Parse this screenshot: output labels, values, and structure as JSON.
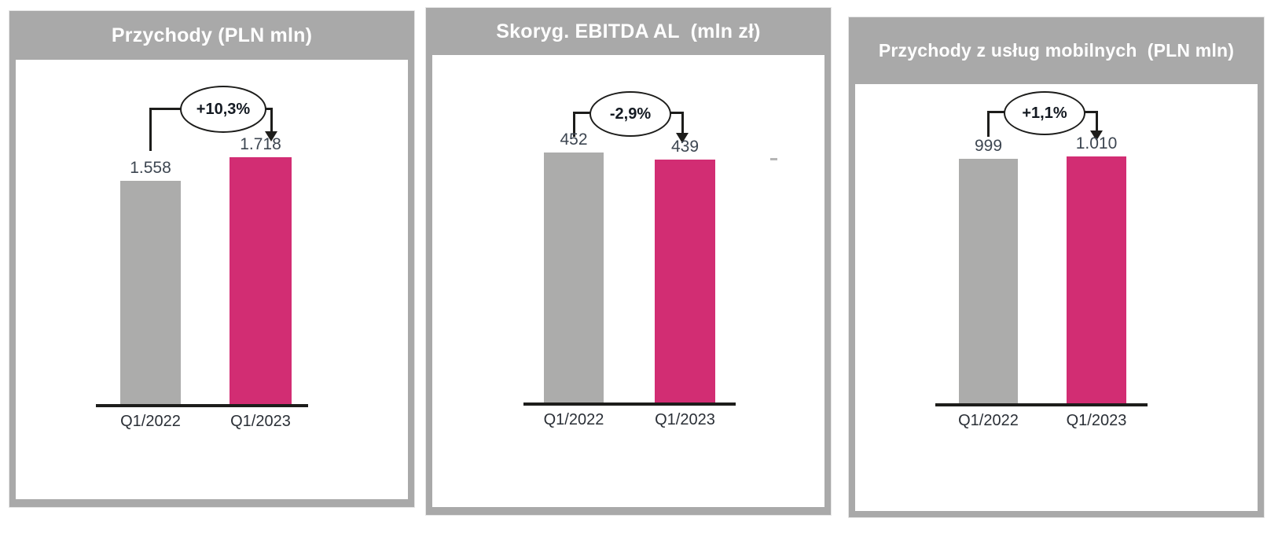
{
  "colors": {
    "panel_frame": "#a9a9a9",
    "bar_previous": "#acacab",
    "bar_current": "#d22d73",
    "axis": "#1d1d1b",
    "title_text": "#ffffff",
    "value_text": "#3d4651"
  },
  "chart_data": [
    {
      "type": "bar",
      "title": "Przychody (PLN mln)",
      "categories": [
        "Q1/2022",
        "Q1/2023"
      ],
      "values": [
        1558,
        1718
      ],
      "value_labels": [
        "1.558",
        "1.718"
      ],
      "delta_label": "+10,3%",
      "series_colors": [
        "#acacab",
        "#d22d73"
      ],
      "xlabel": "",
      "ylabel": "",
      "ylim": [
        0,
        1718
      ],
      "legend": "none",
      "grid": false
    },
    {
      "type": "bar",
      "title": "Skoryg. EBITDA AL  (mln zł)",
      "categories": [
        "Q1/2022",
        "Q1/2023"
      ],
      "values": [
        452,
        439
      ],
      "value_labels": [
        "452",
        "439"
      ],
      "delta_label": "-2,9%",
      "series_colors": [
        "#acacab",
        "#d22d73"
      ],
      "xlabel": "",
      "ylabel": "",
      "ylim": [
        0,
        452
      ],
      "legend": "none",
      "grid": false
    },
    {
      "type": "bar",
      "title": "Przychody z usług mobilnych  (PLN mln)",
      "categories": [
        "Q1/2022",
        "Q1/2023"
      ],
      "values": [
        999,
        1010
      ],
      "value_labels": [
        "999",
        "1.010"
      ],
      "delta_label": "+1,1%",
      "series_colors": [
        "#acacab",
        "#d22d73"
      ],
      "xlabel": "",
      "ylabel": "",
      "ylim": [
        0,
        1010
      ],
      "legend": "none",
      "grid": false
    }
  ]
}
